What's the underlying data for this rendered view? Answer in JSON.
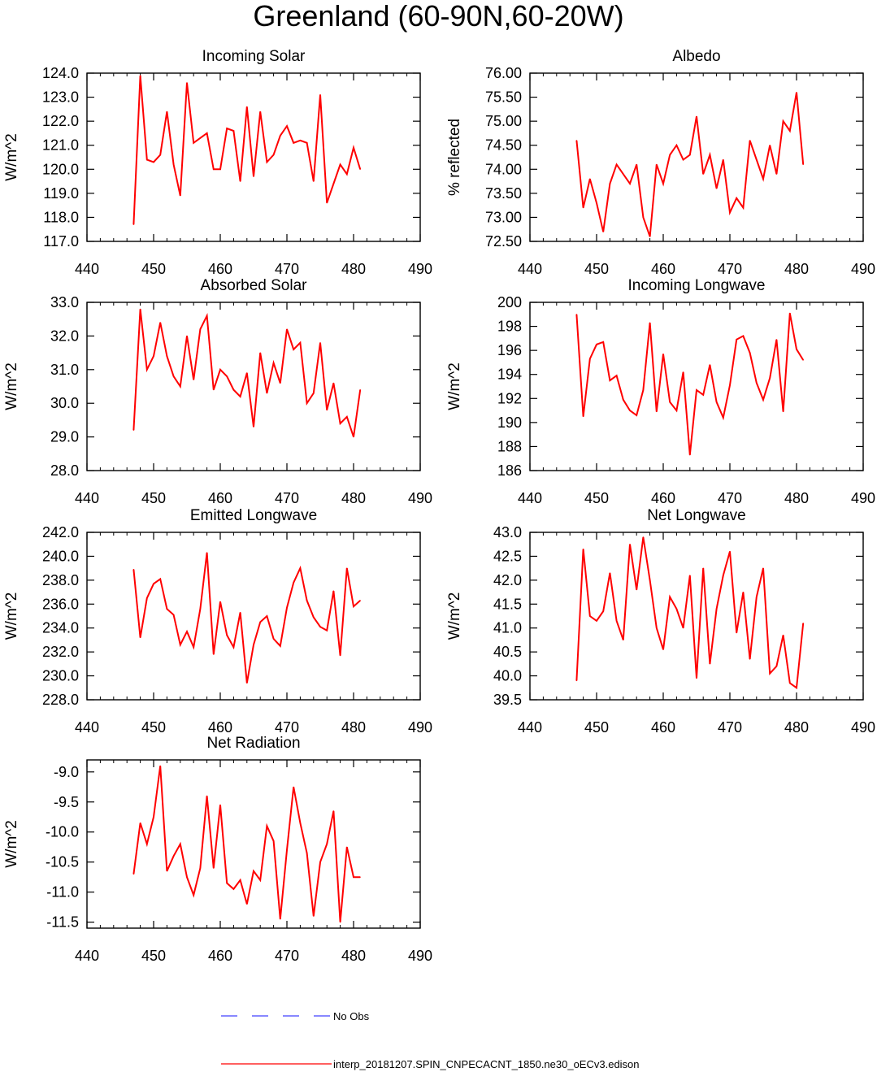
{
  "page": {
    "title": "Greenland (60-90N,60-20W)"
  },
  "colors": {
    "model": "#ff0000",
    "obs": "#4040ff",
    "axis": "#000000"
  },
  "legend": {
    "obs_label": "No Obs",
    "model_label": "interp_20181207.SPIN_CNPECACNT_1850.ne30_oECv3.edison"
  },
  "chart_data": [
    {
      "type": "line",
      "title": "Incoming Solar",
      "ylabel": "W/m^2",
      "xlim": [
        440,
        490
      ],
      "ylim": [
        117.0,
        124.0
      ],
      "xticks": [
        440,
        450,
        460,
        470,
        480,
        490
      ],
      "yticks": [
        "117.0",
        "118.0",
        "119.0",
        "120.0",
        "121.0",
        "122.0",
        "123.0",
        "124.0"
      ],
      "series": [
        {
          "x": [
            447,
            448,
            449,
            450,
            451,
            452,
            453,
            454,
            455,
            456,
            457,
            458,
            459,
            460,
            461,
            462,
            463,
            464,
            465,
            466,
            467,
            468,
            469,
            470,
            471,
            472,
            473,
            474,
            475,
            476,
            477,
            478,
            479,
            480,
            481
          ],
          "values": [
            117.7,
            123.9,
            120.4,
            120.3,
            120.6,
            122.4,
            120.2,
            118.9,
            123.6,
            121.1,
            121.3,
            121.5,
            120.0,
            120.0,
            121.7,
            121.6,
            119.5,
            122.6,
            119.7,
            122.4,
            120.3,
            120.6,
            121.4,
            121.8,
            121.1,
            121.2,
            121.1,
            119.5,
            123.1,
            118.6,
            119.4,
            120.2,
            119.8,
            120.9,
            120.0
          ]
        }
      ]
    },
    {
      "type": "line",
      "title": "Albedo",
      "ylabel": "% reflected",
      "xlim": [
        440,
        490
      ],
      "ylim": [
        72.5,
        76.0
      ],
      "xticks": [
        440,
        450,
        460,
        470,
        480,
        490
      ],
      "yticks": [
        "72.50",
        "73.00",
        "73.50",
        "74.00",
        "74.50",
        "75.00",
        "75.50",
        "76.00"
      ],
      "series": [
        {
          "x": [
            447,
            448,
            449,
            450,
            451,
            452,
            453,
            454,
            455,
            456,
            457,
            458,
            459,
            460,
            461,
            462,
            463,
            464,
            465,
            466,
            467,
            468,
            469,
            470,
            471,
            472,
            473,
            474,
            475,
            476,
            477,
            478,
            479,
            480,
            481
          ],
          "values": [
            74.6,
            73.2,
            73.8,
            73.3,
            72.7,
            73.7,
            74.1,
            73.9,
            73.7,
            74.1,
            73.0,
            72.6,
            74.1,
            73.7,
            74.3,
            74.5,
            74.2,
            74.3,
            75.1,
            73.9,
            74.3,
            73.6,
            74.2,
            73.1,
            73.4,
            73.2,
            74.6,
            74.2,
            73.8,
            74.5,
            73.9,
            75.0,
            74.8,
            75.6,
            74.1
          ]
        }
      ]
    },
    {
      "type": "line",
      "title": "Absorbed Solar",
      "ylabel": "W/m^2",
      "xlim": [
        440,
        490
      ],
      "ylim": [
        28.0,
        33.0
      ],
      "xticks": [
        440,
        450,
        460,
        470,
        480,
        490
      ],
      "yticks": [
        "28.0",
        "29.0",
        "30.0",
        "31.0",
        "32.0",
        "33.0"
      ],
      "series": [
        {
          "x": [
            447,
            448,
            449,
            450,
            451,
            452,
            453,
            454,
            455,
            456,
            457,
            458,
            459,
            460,
            461,
            462,
            463,
            464,
            465,
            466,
            467,
            468,
            469,
            470,
            471,
            472,
            473,
            474,
            475,
            476,
            477,
            478,
            479,
            480,
            481
          ],
          "values": [
            29.2,
            32.8,
            31.0,
            31.4,
            32.4,
            31.4,
            30.8,
            30.5,
            32.0,
            30.7,
            32.2,
            32.6,
            30.4,
            31.0,
            30.8,
            30.4,
            30.2,
            30.9,
            29.3,
            31.5,
            30.3,
            31.2,
            30.6,
            32.2,
            31.6,
            31.8,
            30.0,
            30.3,
            31.8,
            29.8,
            30.6,
            29.4,
            29.6,
            29.0,
            30.4
          ]
        }
      ]
    },
    {
      "type": "line",
      "title": "Incoming Longwave",
      "ylabel": "W/m^2",
      "xlim": [
        440,
        490
      ],
      "ylim": [
        186,
        200
      ],
      "xticks": [
        440,
        450,
        460,
        470,
        480,
        490
      ],
      "yticks": [
        "186",
        "188",
        "190",
        "192",
        "194",
        "196",
        "198",
        "200"
      ],
      "series": [
        {
          "x": [
            447,
            448,
            449,
            450,
            451,
            452,
            453,
            454,
            455,
            456,
            457,
            458,
            459,
            460,
            461,
            462,
            463,
            464,
            465,
            466,
            467,
            468,
            469,
            470,
            471,
            472,
            473,
            474,
            475,
            476,
            477,
            478,
            479,
            480,
            481
          ],
          "values": [
            199.0,
            190.5,
            195.3,
            196.5,
            196.7,
            193.5,
            193.9,
            191.9,
            191.0,
            190.6,
            192.7,
            198.3,
            190.9,
            195.7,
            191.7,
            191.0,
            194.2,
            187.3,
            192.7,
            192.3,
            194.8,
            191.7,
            190.4,
            193.1,
            196.9,
            197.2,
            195.8,
            193.3,
            191.9,
            193.7,
            196.9,
            190.9,
            199.1,
            196.1,
            195.2
          ]
        }
      ]
    },
    {
      "type": "line",
      "title": "Emitted Longwave",
      "ylabel": "W/m^2",
      "xlim": [
        440,
        490
      ],
      "ylim": [
        228.0,
        242.0
      ],
      "xticks": [
        440,
        450,
        460,
        470,
        480,
        490
      ],
      "yticks": [
        "228.0",
        "230.0",
        "232.0",
        "234.0",
        "236.0",
        "238.0",
        "240.0",
        "242.0"
      ],
      "series": [
        {
          "x": [
            447,
            448,
            449,
            450,
            451,
            452,
            453,
            454,
            455,
            456,
            457,
            458,
            459,
            460,
            461,
            462,
            463,
            464,
            465,
            466,
            467,
            468,
            469,
            470,
            471,
            472,
            473,
            474,
            475,
            476,
            477,
            478,
            479,
            480,
            481
          ],
          "values": [
            238.9,
            233.2,
            236.5,
            237.7,
            238.1,
            235.6,
            235.1,
            232.6,
            233.7,
            232.4,
            235.6,
            240.3,
            231.8,
            236.2,
            233.4,
            232.4,
            235.3,
            229.4,
            232.6,
            234.5,
            235.0,
            233.1,
            232.5,
            235.7,
            237.8,
            239.0,
            236.3,
            234.9,
            234.1,
            233.8,
            237.1,
            231.7,
            239.0,
            235.8,
            236.3
          ]
        }
      ]
    },
    {
      "type": "line",
      "title": "Net Longwave",
      "ylabel": "W/m^2",
      "xlim": [
        440,
        490
      ],
      "ylim": [
        39.5,
        43.0
      ],
      "xticks": [
        440,
        450,
        460,
        470,
        480,
        490
      ],
      "yticks": [
        "39.5",
        "40.0",
        "40.5",
        "41.0",
        "41.5",
        "42.0",
        "42.5",
        "43.0"
      ],
      "series": [
        {
          "x": [
            447,
            448,
            449,
            450,
            451,
            452,
            453,
            454,
            455,
            456,
            457,
            458,
            459,
            460,
            461,
            462,
            463,
            464,
            465,
            466,
            467,
            468,
            469,
            470,
            471,
            472,
            473,
            474,
            475,
            476,
            477,
            478,
            479,
            480,
            481
          ],
          "values": [
            39.9,
            42.65,
            41.25,
            41.15,
            41.35,
            42.15,
            41.15,
            40.75,
            42.75,
            41.8,
            42.9,
            42.0,
            41.0,
            40.55,
            41.65,
            41.4,
            41.0,
            42.1,
            39.95,
            42.25,
            40.25,
            41.4,
            42.1,
            42.6,
            40.9,
            41.75,
            40.35,
            41.65,
            42.25,
            40.05,
            40.2,
            40.85,
            39.85,
            39.75,
            41.1
          ]
        }
      ]
    },
    {
      "type": "line",
      "title": "Net Radiation",
      "ylabel": "W/m^2",
      "xlim": [
        440,
        490
      ],
      "ylim": [
        -11.6,
        -8.8
      ],
      "xticks": [
        440,
        450,
        460,
        470,
        480,
        490
      ],
      "yticks": [
        "-11.5",
        "-11.0",
        "-10.5",
        "-10.0",
        "-9.5",
        "-9.0"
      ],
      "series": [
        {
          "x": [
            447,
            448,
            449,
            450,
            451,
            452,
            453,
            454,
            455,
            456,
            457,
            458,
            459,
            460,
            461,
            462,
            463,
            464,
            465,
            466,
            467,
            468,
            469,
            470,
            471,
            472,
            473,
            474,
            475,
            476,
            477,
            478,
            479,
            480,
            481
          ],
          "values": [
            -10.7,
            -9.85,
            -10.2,
            -9.75,
            -8.9,
            -10.65,
            -10.4,
            -10.2,
            -10.75,
            -11.05,
            -10.6,
            -9.4,
            -10.6,
            -9.55,
            -10.85,
            -10.95,
            -10.8,
            -11.2,
            -10.65,
            -10.8,
            -9.9,
            -10.15,
            -11.45,
            -10.3,
            -9.25,
            -9.85,
            -10.35,
            -11.4,
            -10.5,
            -10.2,
            -9.65,
            -11.5,
            -10.25,
            -10.75,
            -10.75
          ]
        }
      ]
    }
  ]
}
